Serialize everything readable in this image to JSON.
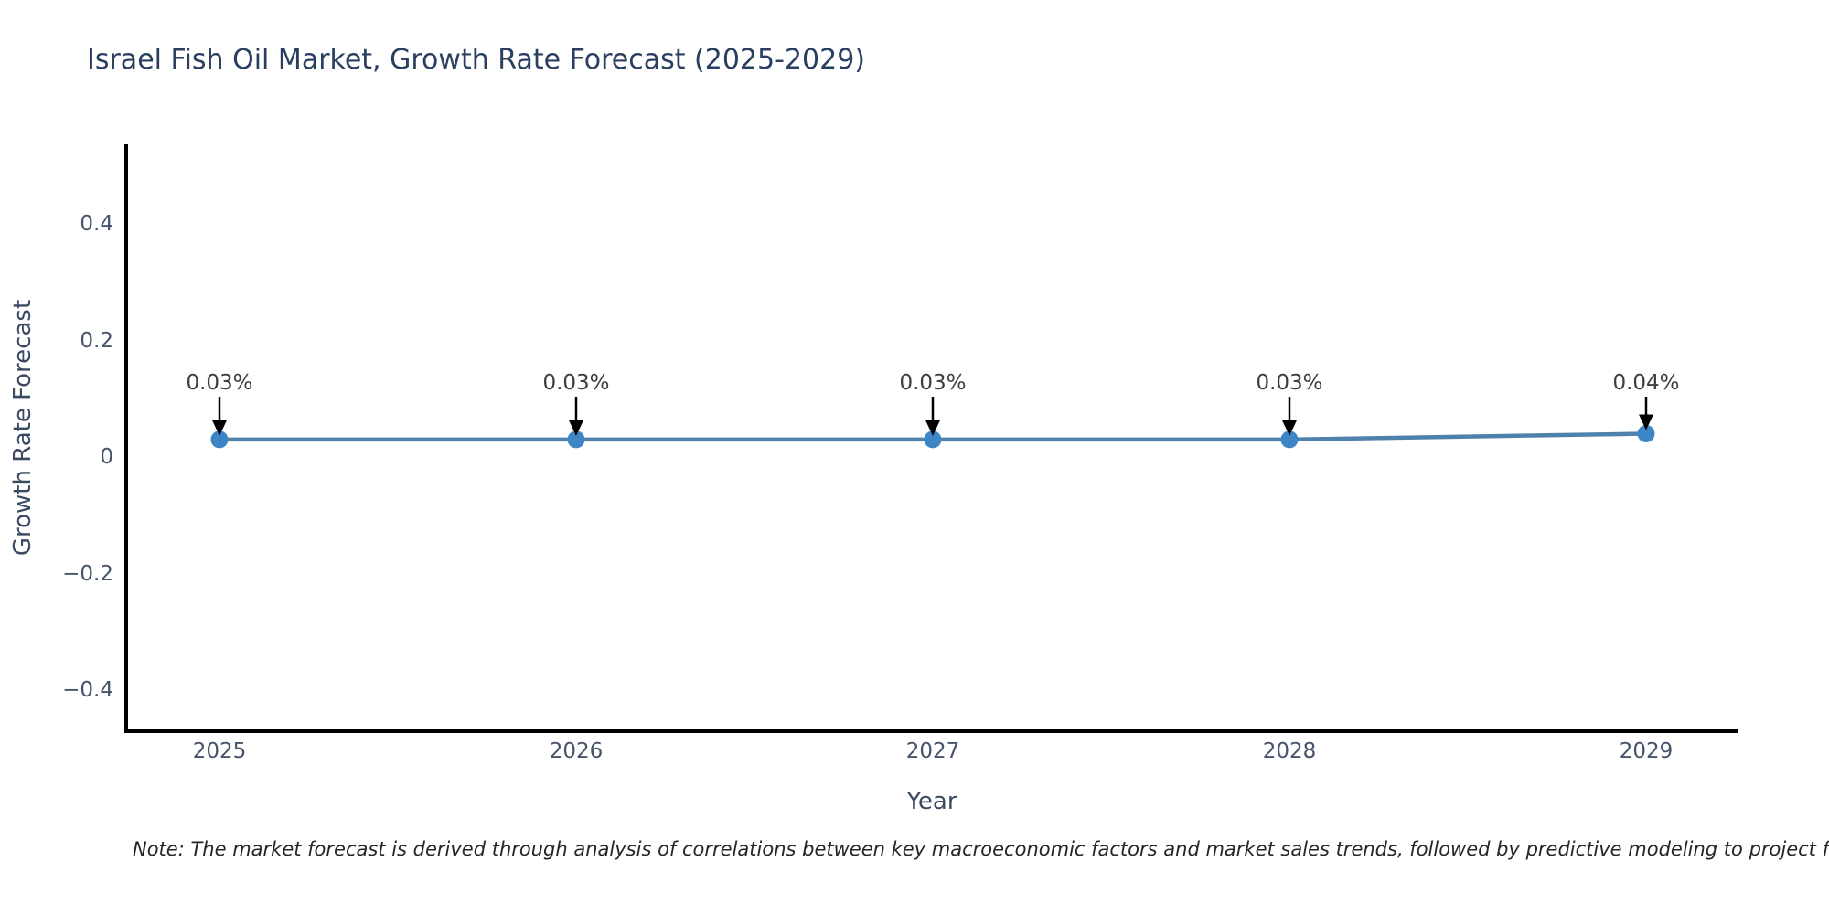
{
  "page": {
    "background": "#ffffff"
  },
  "chart_data": {
    "type": "line",
    "title": "Israel Fish Oil Market, Growth Rate Forecast (2025-2029)",
    "xlabel": "Year",
    "ylabel": "Growth Rate Forecast",
    "categories": [
      "2025",
      "2026",
      "2027",
      "2028",
      "2029"
    ],
    "values": [
      0.03,
      0.03,
      0.03,
      0.03,
      0.04
    ],
    "point_labels": [
      "0.03%",
      "0.03%",
      "0.03%",
      "0.03%",
      "0.04%"
    ],
    "yticks": [
      0.4,
      0.2,
      0,
      -0.2,
      -0.4
    ],
    "ytick_labels": [
      "0.4",
      "0.2",
      "0",
      "−0.2",
      "−0.4"
    ],
    "ylim": [
      -0.47,
      0.54
    ],
    "grid": false,
    "legend_position": "none"
  },
  "note": {
    "text": "Note: The market forecast is derived through analysis of correlations between key macroeconomic factors and market sales trends, followed by predictive modeling to project future sa"
  },
  "colors": {
    "title": "#2a3f5f",
    "axis_label": "#3b4a63",
    "tick_label": "#46536b",
    "spine": "#000000",
    "line": "#4f81ad",
    "marker": "#3e85c6",
    "arrow": "#000000",
    "annotation_text": "#3d3d3d",
    "note_text": "#262626"
  }
}
